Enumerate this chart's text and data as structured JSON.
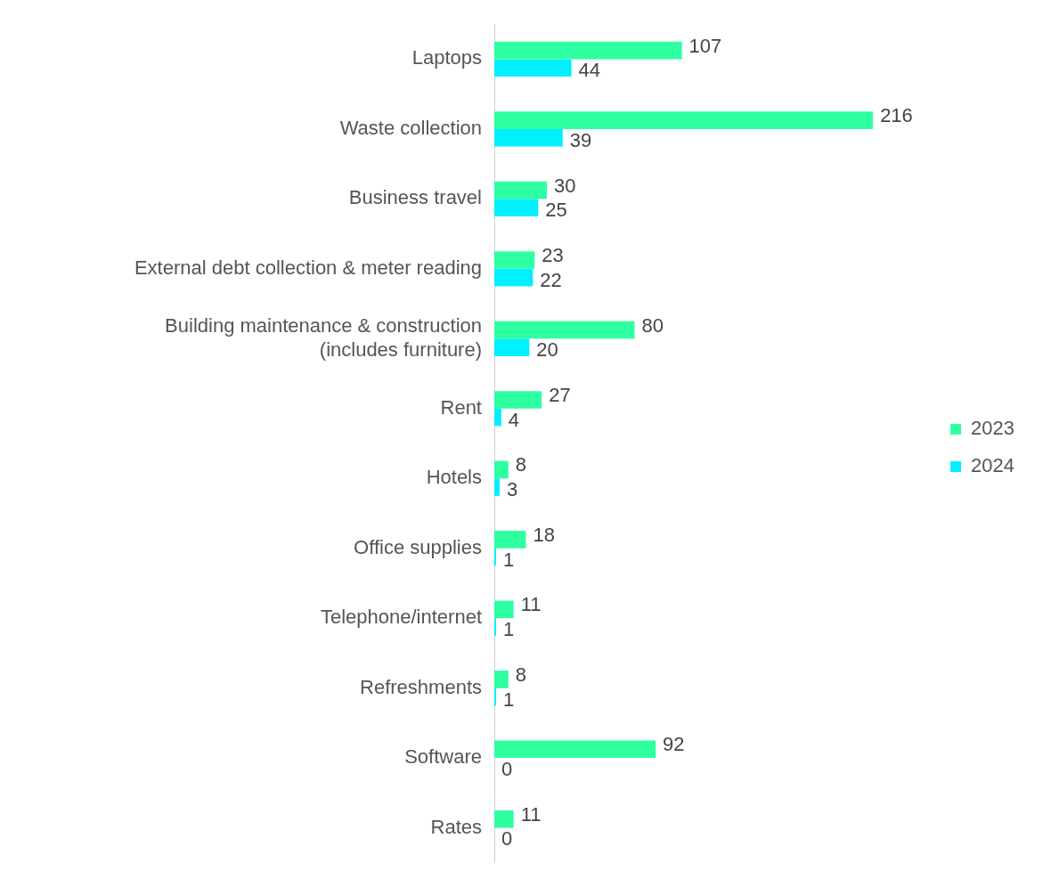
{
  "chart_data": {
    "type": "bar",
    "orientation": "horizontal",
    "categories": [
      "Laptops",
      "Waste collection",
      "Business travel",
      "External debt collection & meter reading",
      "Building maintenance & construction\n(includes furniture)",
      "Rent",
      "Hotels",
      "Office supplies",
      "Telephone/internet",
      "Refreshments",
      "Software",
      "Rates"
    ],
    "series": [
      {
        "name": "2023",
        "color": "#2effa0",
        "values": [
          107,
          216,
          30,
          23,
          80,
          27,
          8,
          18,
          11,
          8,
          92,
          11
        ]
      },
      {
        "name": "2024",
        "color": "#00f0ff",
        "values": [
          44,
          39,
          25,
          22,
          20,
          4,
          3,
          1,
          1,
          1,
          0,
          0
        ]
      }
    ],
    "data_labels": true,
    "grid": false,
    "legend": "right",
    "tick_labels": "y"
  }
}
